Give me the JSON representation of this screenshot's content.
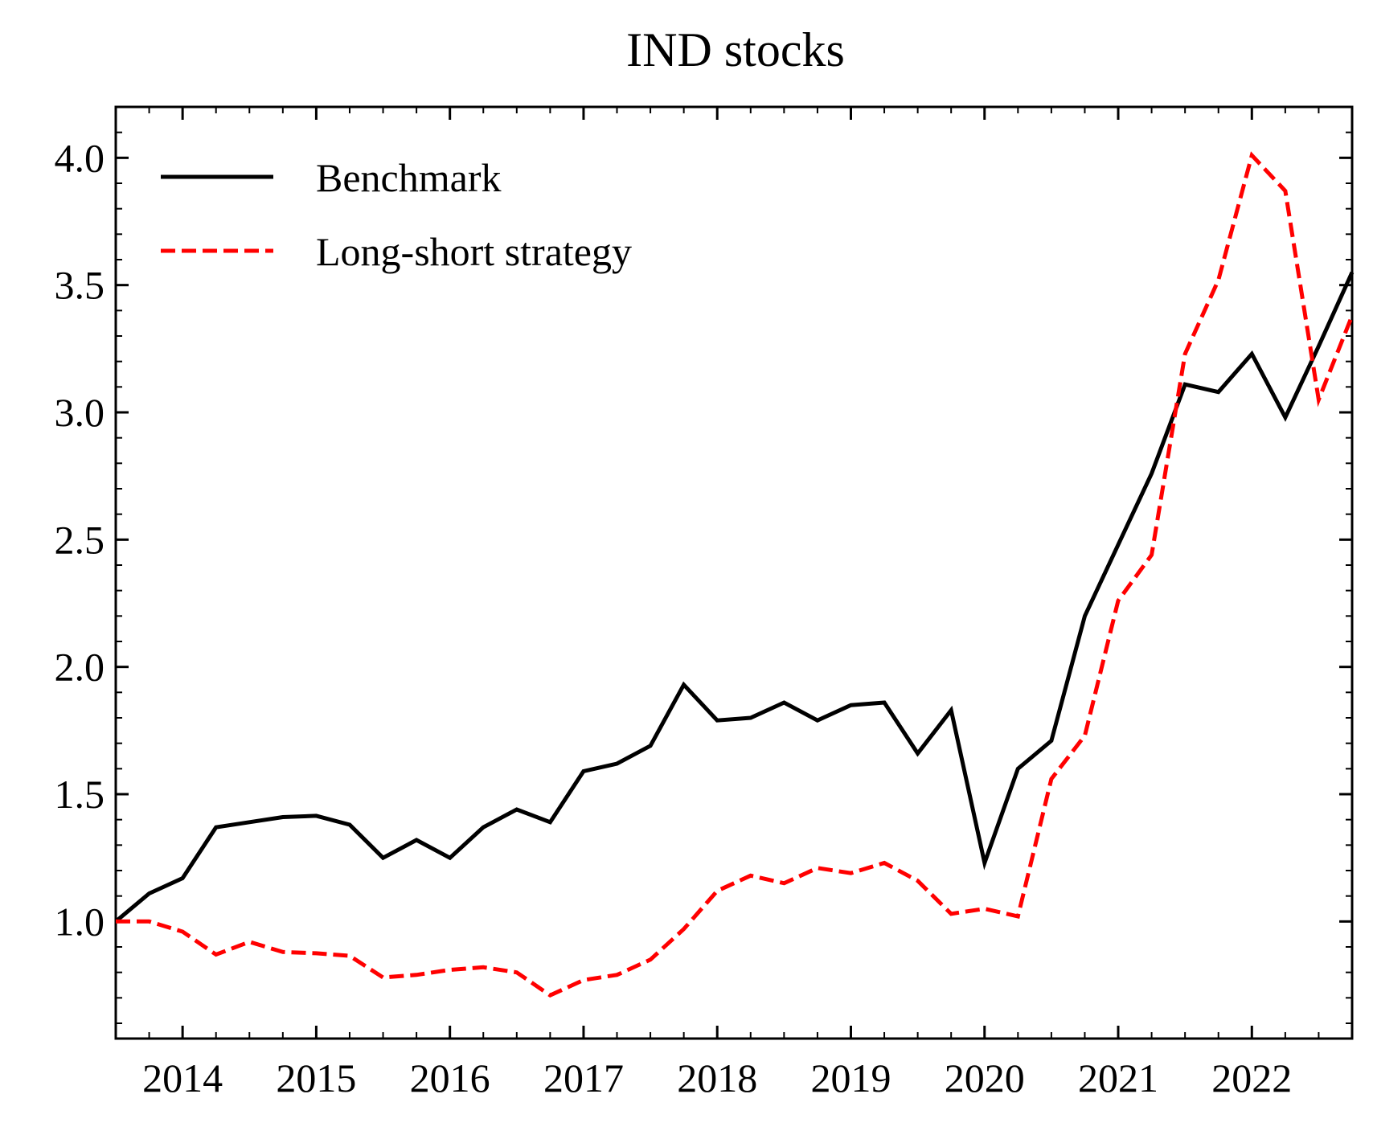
{
  "chart_data": {
    "type": "line",
    "title": "IND stocks",
    "xlabel": "",
    "ylabel": "",
    "xlim": [
      2013.5,
      2022.75
    ],
    "ylim": [
      0.54,
      4.2
    ],
    "x_ticks": [
      2014,
      2015,
      2016,
      2017,
      2018,
      2019,
      2020,
      2021,
      2022
    ],
    "x_tick_labels": [
      "2014",
      "2015",
      "2016",
      "2017",
      "2018",
      "2019",
      "2020",
      "2021",
      "2022"
    ],
    "y_ticks": [
      1.0,
      1.5,
      2.0,
      2.5,
      3.0,
      3.5,
      4.0
    ],
    "y_tick_labels": [
      "1.0",
      "1.5",
      "2.0",
      "2.5",
      "3.0",
      "3.5",
      "4.0"
    ],
    "grid": false,
    "legend_position": "top-left",
    "x": [
      2013.5,
      2013.75,
      2014.0,
      2014.25,
      2014.5,
      2014.75,
      2015.0,
      2015.25,
      2015.5,
      2015.75,
      2016.0,
      2016.25,
      2016.5,
      2016.75,
      2017.0,
      2017.25,
      2017.5,
      2017.75,
      2018.0,
      2018.25,
      2018.5,
      2018.75,
      2019.0,
      2019.25,
      2019.5,
      2019.75,
      2020.0,
      2020.25,
      2020.5,
      2020.75,
      2021.0,
      2021.25,
      2021.5,
      2021.75,
      2022.0,
      2022.25,
      2022.5,
      2022.75
    ],
    "series": [
      {
        "name": "Benchmark",
        "color": "#000000",
        "dash": "solid",
        "values": [
          1.0,
          1.11,
          1.17,
          1.37,
          1.39,
          1.41,
          1.415,
          1.38,
          1.25,
          1.32,
          1.25,
          1.37,
          1.44,
          1.39,
          1.59,
          1.62,
          1.69,
          1.93,
          1.79,
          1.8,
          1.86,
          1.79,
          1.85,
          1.86,
          1.66,
          1.83,
          1.23,
          1.6,
          1.71,
          2.2,
          2.48,
          2.76,
          3.11,
          3.08,
          3.23,
          2.98,
          3.26,
          3.55
        ]
      },
      {
        "name": "Long-short strategy",
        "color": "#ff0000",
        "dash": "dashed",
        "values": [
          1.0,
          1.0,
          0.96,
          0.87,
          0.92,
          0.88,
          0.875,
          0.865,
          0.78,
          0.79,
          0.81,
          0.82,
          0.8,
          0.71,
          0.77,
          0.79,
          0.85,
          0.97,
          1.12,
          1.18,
          1.15,
          1.21,
          1.19,
          1.23,
          1.16,
          1.03,
          1.05,
          1.02,
          1.56,
          1.73,
          2.26,
          2.44,
          3.23,
          3.52,
          4.01,
          3.87,
          3.05,
          3.38
        ]
      }
    ]
  }
}
